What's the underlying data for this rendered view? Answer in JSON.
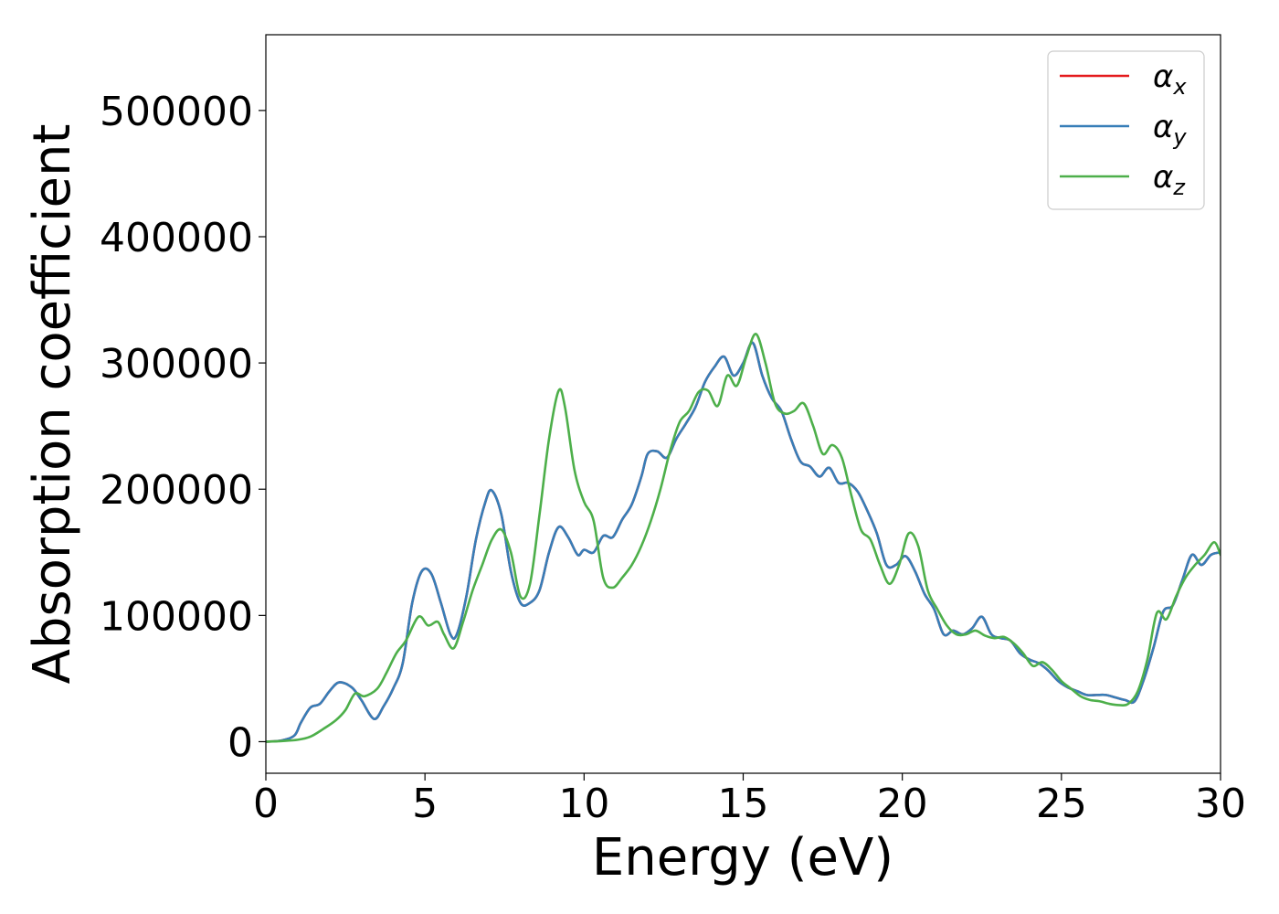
{
  "chart_data": {
    "type": "line",
    "title": "",
    "xlabel": "Energy (eV)",
    "ylabel": "Absorption coefficient",
    "xlim": [
      0,
      30
    ],
    "ylim": [
      -25000,
      560000
    ],
    "xticks": [
      0,
      5,
      10,
      15,
      20,
      25,
      30
    ],
    "xtick_labels": [
      "0",
      "5",
      "10",
      "15",
      "20",
      "25",
      "30"
    ],
    "yticks": [
      0,
      100000,
      200000,
      300000,
      400000,
      500000
    ],
    "ytick_labels": [
      "0",
      "100000",
      "200000",
      "300000",
      "400000",
      "500000"
    ],
    "grid": false,
    "legend_position": "top-right",
    "series": [
      {
        "name": "α_x",
        "legend_base": "α",
        "legend_sub": "x",
        "color": "#e41a1c",
        "x": [
          0,
          0.5,
          0.9,
          1.1,
          1.4,
          1.7,
          2.0,
          2.3,
          2.7,
          3.0,
          3.4,
          3.7,
          4.0,
          4.3,
          4.6,
          4.9,
          5.2,
          5.5,
          5.8,
          6.0,
          6.3,
          6.6,
          6.9,
          7.1,
          7.4,
          7.7,
          8.0,
          8.3,
          8.6,
          8.9,
          9.2,
          9.5,
          9.8,
          10.0,
          10.3,
          10.6,
          10.9,
          11.2,
          11.5,
          11.8,
          12.0,
          12.3,
          12.6,
          12.9,
          13.2,
          13.5,
          13.8,
          14.1,
          14.4,
          14.7,
          15.0,
          15.3,
          15.6,
          15.9,
          16.2,
          16.5,
          16.8,
          17.1,
          17.4,
          17.7,
          18.0,
          18.3,
          18.6,
          18.9,
          19.2,
          19.5,
          19.8,
          20.1,
          20.4,
          20.7,
          21.0,
          21.3,
          21.6,
          21.9,
          22.2,
          22.5,
          22.8,
          23.1,
          23.4,
          23.7,
          24.0,
          24.3,
          24.6,
          24.9,
          25.2,
          25.5,
          25.8,
          26.1,
          26.4,
          26.7,
          27.0,
          27.3,
          27.6,
          27.9,
          28.2,
          28.5,
          28.8,
          29.1,
          29.4,
          29.7,
          30.0
        ],
        "y": [
          0,
          1000,
          5000,
          15000,
          27000,
          30000,
          40000,
          47000,
          43000,
          33000,
          18000,
          28000,
          42000,
          62000,
          110000,
          135000,
          133000,
          110000,
          85000,
          85000,
          115000,
          160000,
          190000,
          199000,
          180000,
          135000,
          110000,
          110000,
          120000,
          150000,
          170000,
          162000,
          148000,
          152000,
          150000,
          163000,
          162000,
          176000,
          188000,
          210000,
          228000,
          230000,
          225000,
          240000,
          252000,
          265000,
          285000,
          297000,
          305000,
          290000,
          300000,
          316000,
          290000,
          272000,
          262000,
          240000,
          222000,
          218000,
          210000,
          217000,
          205000,
          205000,
          198000,
          183000,
          165000,
          140000,
          140000,
          147000,
          135000,
          117000,
          105000,
          85000,
          88000,
          85000,
          90000,
          99000,
          85000,
          82000,
          80000,
          70000,
          65000,
          62000,
          56000,
          48000,
          43000,
          40000,
          37000,
          37000,
          37000,
          35000,
          33000,
          32000,
          50000,
          75000,
          103000,
          108000,
          128000,
          148000,
          140000,
          148000,
          150000
        ]
      },
      {
        "name": "α_y",
        "legend_base": "α",
        "legend_sub": "y",
        "color": "#377eb8",
        "x": [
          0,
          0.5,
          0.9,
          1.1,
          1.4,
          1.7,
          2.0,
          2.3,
          2.7,
          3.0,
          3.4,
          3.7,
          4.0,
          4.3,
          4.6,
          4.9,
          5.2,
          5.5,
          5.8,
          6.0,
          6.3,
          6.6,
          6.9,
          7.1,
          7.4,
          7.7,
          8.0,
          8.3,
          8.6,
          8.9,
          9.2,
          9.5,
          9.8,
          10.0,
          10.3,
          10.6,
          10.9,
          11.2,
          11.5,
          11.8,
          12.0,
          12.3,
          12.6,
          12.9,
          13.2,
          13.5,
          13.8,
          14.1,
          14.4,
          14.7,
          15.0,
          15.3,
          15.6,
          15.9,
          16.2,
          16.5,
          16.8,
          17.1,
          17.4,
          17.7,
          18.0,
          18.3,
          18.6,
          18.9,
          19.2,
          19.5,
          19.8,
          20.1,
          20.4,
          20.7,
          21.0,
          21.3,
          21.6,
          21.9,
          22.2,
          22.5,
          22.8,
          23.1,
          23.4,
          23.7,
          24.0,
          24.3,
          24.6,
          24.9,
          25.2,
          25.5,
          25.8,
          26.1,
          26.4,
          26.7,
          27.0,
          27.3,
          27.6,
          27.9,
          28.2,
          28.5,
          28.8,
          29.1,
          29.4,
          29.7,
          30.0
        ],
        "y": [
          0,
          1000,
          5000,
          15000,
          27000,
          30000,
          40000,
          47000,
          43000,
          33000,
          18000,
          28000,
          42000,
          62000,
          110000,
          135000,
          133000,
          110000,
          85000,
          85000,
          115000,
          160000,
          190000,
          199000,
          180000,
          135000,
          110000,
          110000,
          120000,
          150000,
          170000,
          162000,
          148000,
          152000,
          150000,
          163000,
          162000,
          176000,
          188000,
          210000,
          228000,
          230000,
          225000,
          240000,
          252000,
          265000,
          285000,
          297000,
          305000,
          290000,
          300000,
          316000,
          290000,
          272000,
          262000,
          240000,
          222000,
          218000,
          210000,
          217000,
          205000,
          205000,
          198000,
          183000,
          165000,
          140000,
          140000,
          147000,
          135000,
          117000,
          105000,
          85000,
          88000,
          85000,
          90000,
          99000,
          85000,
          82000,
          80000,
          70000,
          65000,
          62000,
          56000,
          48000,
          43000,
          40000,
          37000,
          37000,
          37000,
          35000,
          33000,
          32000,
          50000,
          75000,
          103000,
          108000,
          128000,
          148000,
          140000,
          148000,
          150000
        ]
      },
      {
        "name": "α_z",
        "legend_base": "α",
        "legend_sub": "z",
        "color": "#4daf4a",
        "x": [
          0,
          0.5,
          1.0,
          1.4,
          1.8,
          2.2,
          2.5,
          2.8,
          3.1,
          3.5,
          3.8,
          4.1,
          4.4,
          4.8,
          5.1,
          5.4,
          5.6,
          5.9,
          6.2,
          6.5,
          6.8,
          7.1,
          7.4,
          7.7,
          8.0,
          8.3,
          8.6,
          8.9,
          9.2,
          9.4,
          9.7,
          10.0,
          10.3,
          10.6,
          10.9,
          11.2,
          11.5,
          11.8,
          12.1,
          12.4,
          12.7,
          13.0,
          13.3,
          13.6,
          13.9,
          14.2,
          14.5,
          14.8,
          15.1,
          15.4,
          15.7,
          16.0,
          16.3,
          16.6,
          16.9,
          17.2,
          17.5,
          17.8,
          18.1,
          18.4,
          18.7,
          19.0,
          19.3,
          19.6,
          19.9,
          20.2,
          20.5,
          20.8,
          21.1,
          21.4,
          21.7,
          22.0,
          22.3,
          22.6,
          22.9,
          23.2,
          23.5,
          23.8,
          24.1,
          24.4,
          24.7,
          25.0,
          25.3,
          25.6,
          25.9,
          26.2,
          26.5,
          26.8,
          27.1,
          27.4,
          27.7,
          28.0,
          28.3,
          28.6,
          28.9,
          29.2,
          29.5,
          29.8,
          30.0
        ],
        "y": [
          0,
          500,
          1500,
          4000,
          10000,
          17000,
          25000,
          38000,
          36000,
          42000,
          55000,
          70000,
          80000,
          99000,
          92000,
          95000,
          85000,
          74000,
          95000,
          120000,
          140000,
          160000,
          168000,
          150000,
          115000,
          125000,
          180000,
          240000,
          278000,
          265000,
          215000,
          190000,
          175000,
          130000,
          122000,
          130000,
          140000,
          155000,
          175000,
          200000,
          230000,
          253000,
          262000,
          277000,
          278000,
          266000,
          290000,
          282000,
          305000,
          323000,
          300000,
          268000,
          260000,
          262000,
          268000,
          250000,
          228000,
          235000,
          225000,
          195000,
          168000,
          160000,
          140000,
          125000,
          140000,
          165000,
          155000,
          120000,
          105000,
          92000,
          85000,
          85000,
          88000,
          84000,
          82000,
          83000,
          78000,
          70000,
          60000,
          63000,
          57000,
          48000,
          42000,
          36000,
          33000,
          32000,
          30000,
          29000,
          30000,
          40000,
          65000,
          102000,
          97000,
          115000,
          130000,
          140000,
          148000,
          158000,
          148000
        ]
      }
    ]
  }
}
